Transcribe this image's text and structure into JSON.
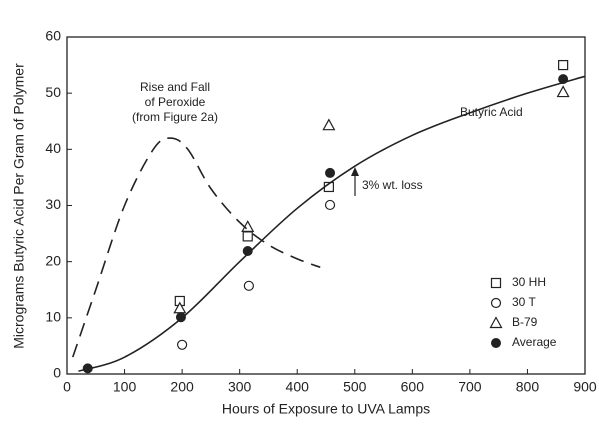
{
  "chart_data": {
    "type": "scatter",
    "xlabel": "Hours of Exposure to UVA Lamps",
    "ylabel": "Micrograms Butyric Acid Per Gram of Polymer",
    "xlim": [
      0,
      900
    ],
    "xticks": [
      0,
      100,
      200,
      300,
      400,
      500,
      600,
      700,
      800,
      900
    ],
    "ylim": [
      0,
      60
    ],
    "yticks": [
      0,
      10,
      20,
      30,
      40,
      50,
      60
    ],
    "grid": false,
    "legend": "lower right",
    "series": [
      {
        "name": "30 HH",
        "marker": "square",
        "color": "#222222",
        "x": [
          196,
          314,
          455,
          862
        ],
        "values": [
          13,
          24.5,
          33.3,
          55
        ]
      },
      {
        "name": "30 T",
        "marker": "circle",
        "color": "#222222",
        "x": [
          200,
          316,
          457
        ],
        "values": [
          5.2,
          15.7,
          30.1
        ]
      },
      {
        "name": "B-79",
        "marker": "triangle",
        "color": "#222222",
        "x": [
          196,
          314,
          455,
          862
        ],
        "values": [
          11.7,
          26.2,
          44.3,
          50.2
        ]
      },
      {
        "name": "Average",
        "marker": "filled-circle",
        "color": "#222222",
        "x": [
          36,
          198,
          314,
          457,
          862
        ],
        "values": [
          1,
          10.1,
          21.9,
          35.8,
          52.5
        ]
      },
      {
        "name": "Butyric Acid",
        "line": "solid",
        "color": "#222222",
        "x": [
          20,
          100,
          200,
          300,
          400,
          500,
          600,
          700,
          800,
          900
        ],
        "values": [
          0.5,
          3,
          10,
          20,
          29.5,
          37,
          42.5,
          46.5,
          50,
          53
        ]
      },
      {
        "line": "dashed",
        "color": "#222222",
        "x": [
          10,
          50,
          100,
          150,
          180,
          210,
          250,
          300,
          350,
          400,
          440
        ],
        "values": [
          3,
          15,
          30,
          40,
          42,
          40,
          33,
          27,
          23,
          20.5,
          19
        ]
      }
    ],
    "annotations": [
      {
        "lines": [
          "Rise and Fall",
          "of Peroxide",
          "(from Figure 2a)"
        ]
      },
      {
        "text": "3% wt. loss"
      }
    ]
  }
}
